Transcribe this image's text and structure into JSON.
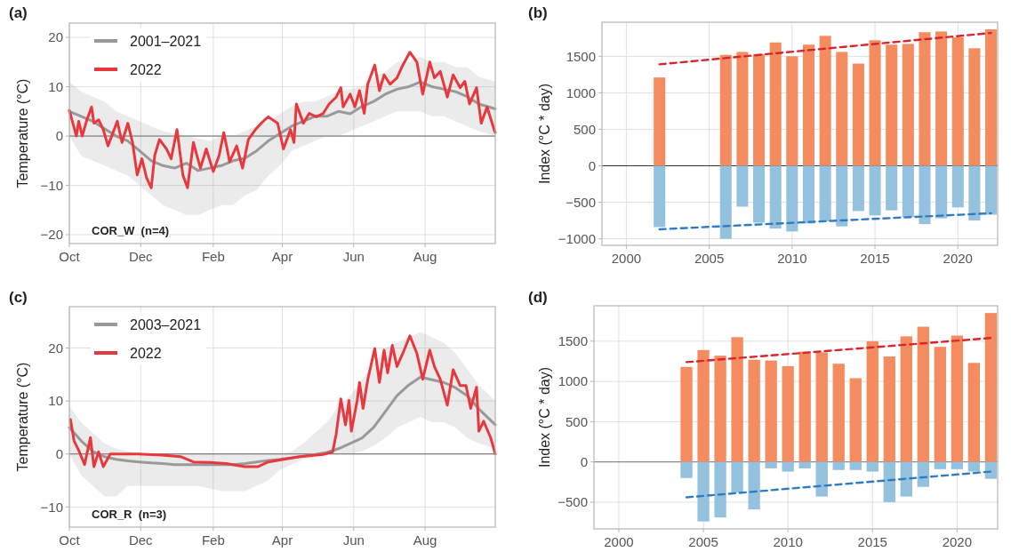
{
  "chart_data": [
    {
      "type": "line",
      "title": "(a)",
      "ylabel": "Temperature (°C)",
      "xlim": [
        "2021-10-01",
        "2022-09-30"
      ],
      "xticks": [
        {
          "value": "2021-10-01",
          "label": "Oct"
        },
        {
          "value": "2021-12-01",
          "label": "Dec"
        },
        {
          "value": "2022-02-01",
          "label": "Feb"
        },
        {
          "value": "2022-04-01",
          "label": "Apr"
        },
        {
          "value": "2022-06-01",
          "label": "Jun"
        },
        {
          "value": "2022-08-01",
          "label": "Aug"
        }
      ],
      "ylim": [
        -21.8,
        22.9
      ],
      "yticks": [
        -20,
        -10,
        0,
        10,
        20
      ],
      "grid": true,
      "legend": "top left",
      "annotations": [
        "COR_W  (n=4)"
      ],
      "ref_lines": [
        {
          "axis": "y",
          "value": 0,
          "color": "#666666"
        }
      ],
      "series": [
        {
          "name": "2001–2021",
          "color": "#999999",
          "x": [
            "2021-10-01",
            "2021-10-11",
            "2021-10-21",
            "2021-10-31",
            "2021-11-10",
            "2021-11-20",
            "2021-11-30",
            "2021-12-10",
            "2021-12-20",
            "2021-12-30",
            "2022-01-09",
            "2022-01-19",
            "2022-01-29",
            "2022-02-08",
            "2022-02-18",
            "2022-02-28",
            "2022-03-10",
            "2022-03-20",
            "2022-03-30",
            "2022-04-09",
            "2022-04-19",
            "2022-04-29",
            "2022-05-09",
            "2022-05-19",
            "2022-05-29",
            "2022-06-08",
            "2022-06-18",
            "2022-06-28",
            "2022-07-08",
            "2022-07-18",
            "2022-07-28",
            "2022-08-07",
            "2022-08-17",
            "2022-08-27",
            "2022-09-06",
            "2022-09-16",
            "2022-09-30"
          ],
          "values": [
            5,
            4,
            3,
            1.5,
            0,
            -1,
            -3,
            -5,
            -6,
            -6.5,
            -5.5,
            -7,
            -6.5,
            -6,
            -5,
            -4.5,
            -3,
            -1,
            0.5,
            2,
            3,
            4,
            4,
            5,
            4.5,
            6,
            7,
            8.5,
            9.5,
            10,
            11,
            10,
            9.5,
            9,
            8,
            6.5,
            5.5
          ],
          "upper": [
            11,
            9,
            8,
            7,
            5,
            4,
            3,
            2,
            1,
            0.5,
            0,
            -0.5,
            -1,
            0,
            0,
            1,
            2,
            3,
            4.5,
            6,
            7,
            7,
            8,
            9,
            9.5,
            10,
            12,
            13,
            15,
            15,
            16,
            15,
            15,
            14,
            14,
            12,
            11
          ],
          "lower": [
            0,
            -4,
            -5,
            -6,
            -7,
            -8,
            -10,
            -12,
            -14,
            -15,
            -16,
            -16,
            -15,
            -14,
            -14,
            -12,
            -11,
            -8,
            -6,
            -3,
            -2,
            -1,
            0,
            0,
            1,
            2,
            3,
            4,
            5,
            5,
            5,
            4,
            4,
            3,
            2,
            1,
            0
          ]
        },
        {
          "name": "2022",
          "color": "#e8383d",
          "x": [
            "2021-10-01",
            "2021-10-07",
            "2021-10-09",
            "2021-10-12",
            "2021-10-16",
            "2021-10-20",
            "2021-10-22",
            "2021-10-26",
            "2021-10-30",
            "2021-11-03",
            "2021-11-11",
            "2021-11-15",
            "2021-11-20",
            "2021-11-24",
            "2021-11-28",
            "2021-12-02",
            "2021-12-06",
            "2021-12-10",
            "2021-12-13",
            "2021-12-17",
            "2021-12-23",
            "2021-12-27",
            "2022-01-01",
            "2022-01-06",
            "2022-01-10",
            "2022-01-15",
            "2022-01-21",
            "2022-01-26",
            "2022-02-01",
            "2022-02-06",
            "2022-02-10",
            "2022-02-15",
            "2022-02-21",
            "2022-02-26",
            "2022-03-03",
            "2022-03-09",
            "2022-03-14",
            "2022-03-20",
            "2022-03-28",
            "2022-04-02",
            "2022-04-08",
            "2022-04-11",
            "2022-04-13",
            "2022-04-19",
            "2022-04-24",
            "2022-04-30",
            "2022-05-06",
            "2022-05-11",
            "2022-05-17",
            "2022-05-21",
            "2022-05-23",
            "2022-05-29",
            "2022-06-02",
            "2022-06-06",
            "2022-06-10",
            "2022-06-13",
            "2022-06-19",
            "2022-06-23",
            "2022-06-27",
            "2022-07-02",
            "2022-07-08",
            "2022-07-13",
            "2022-07-19",
            "2022-07-25",
            "2022-07-30",
            "2022-08-05",
            "2022-08-09",
            "2022-08-14",
            "2022-08-20",
            "2022-08-25",
            "2022-08-31",
            "2022-09-04",
            "2022-09-08",
            "2022-09-14",
            "2022-09-18",
            "2022-09-23",
            "2022-09-29",
            "2022-09-30"
          ],
          "values": [
            5.2,
            0,
            3,
            0,
            3.3,
            5.9,
            2.6,
            3.3,
            1.3,
            -2,
            3,
            -1.3,
            2.6,
            -1.3,
            -7.9,
            -4.6,
            -8.5,
            -10.5,
            -3.9,
            -0.7,
            -2.6,
            -4.6,
            1.3,
            -7.9,
            -10.5,
            -1.3,
            -6.5,
            -2.6,
            -7.2,
            -3.9,
            0.7,
            -5.2,
            -2,
            -6.5,
            -0.7,
            1.3,
            2.6,
            3.9,
            2.6,
            -2.6,
            1.3,
            -1.3,
            6.5,
            2.6,
            4.6,
            3.9,
            4.6,
            6.5,
            7.9,
            9.8,
            5.9,
            8.5,
            5.9,
            9.2,
            4.6,
            10.5,
            14.4,
            9.2,
            12.4,
            10.5,
            11.8,
            14.4,
            17,
            15,
            8.5,
            15,
            11.8,
            13.1,
            7.9,
            12.4,
            9.8,
            11.1,
            6.5,
            9.8,
            2.6,
            5.9,
            1.3,
            0.7
          ]
        }
      ]
    },
    {
      "type": "bar",
      "stacked": true,
      "title": "(b)",
      "ylabel": "Index (°C * day)",
      "xlim": [
        1998.53,
        2022.4
      ],
      "xticks": [
        2000,
        2005,
        2010,
        2015,
        2020
      ],
      "ylim": [
        -1090,
        1967
      ],
      "yticks": [
        -1000,
        -500,
        0,
        500,
        1000,
        1500
      ],
      "grid": true,
      "ref_lines": [
        {
          "axis": "y",
          "value": 0,
          "color": "#333333"
        }
      ],
      "x": [
        2002,
        2006,
        2007,
        2008,
        2009,
        2010,
        2011,
        2012,
        2013,
        2014,
        2015,
        2016,
        2017,
        2018,
        2019,
        2020,
        2021,
        2022
      ],
      "series": [
        {
          "color": "#f48c60",
          "values": [
            1210,
            1520,
            1560,
            1530,
            1690,
            1500,
            1660,
            1780,
            1560,
            1400,
            1720,
            1660,
            1670,
            1830,
            1840,
            1760,
            1610,
            1870
          ]
        },
        {
          "color": "#94c1de",
          "values": [
            -840,
            -1000,
            -560,
            -780,
            -860,
            -900,
            -790,
            -760,
            -830,
            -620,
            -680,
            -610,
            -700,
            -800,
            -720,
            -570,
            -750,
            -670
          ]
        },
        {
          "type": "line",
          "line_style": "dashed",
          "color": "#d7262e",
          "x": [
            2002,
            2022
          ],
          "values": [
            1390,
            1820
          ]
        },
        {
          "type": "line",
          "line_style": "dashed",
          "color": "#2f7dc0",
          "x": [
            2002,
            2022
          ],
          "values": [
            -870,
            -650
          ]
        }
      ]
    },
    {
      "type": "line",
      "title": "(c)",
      "ylabel": "Temperature (°C)",
      "xlim": [
        "2021-10-01",
        "2022-09-30"
      ],
      "xticks": [
        {
          "value": "2021-10-01",
          "label": "Oct"
        },
        {
          "value": "2021-12-01",
          "label": "Dec"
        },
        {
          "value": "2022-02-01",
          "label": "Feb"
        },
        {
          "value": "2022-04-01",
          "label": "Apr"
        },
        {
          "value": "2022-06-01",
          "label": "Jun"
        },
        {
          "value": "2022-08-01",
          "label": "Aug"
        }
      ],
      "ylim": [
        -13.8,
        27.8
      ],
      "yticks": [
        -10,
        0,
        10,
        20
      ],
      "grid": true,
      "legend": "top left",
      "annotations": [
        "COR_R  (n=3)"
      ],
      "ref_lines": [
        {
          "axis": "y",
          "value": 0,
          "color": "#666666"
        }
      ],
      "series": [
        {
          "name": "2003–2021",
          "color": "#999999",
          "x": [
            "2021-10-01",
            "2021-10-11",
            "2021-10-21",
            "2021-10-31",
            "2021-11-10",
            "2021-11-20",
            "2021-11-30",
            "2021-12-10",
            "2021-12-20",
            "2021-12-30",
            "2022-01-09",
            "2022-01-19",
            "2022-01-29",
            "2022-02-08",
            "2022-02-18",
            "2022-02-28",
            "2022-03-10",
            "2022-03-20",
            "2022-03-30",
            "2022-04-09",
            "2022-04-19",
            "2022-04-29",
            "2022-05-09",
            "2022-05-19",
            "2022-05-29",
            "2022-06-08",
            "2022-06-18",
            "2022-06-28",
            "2022-07-08",
            "2022-07-18",
            "2022-07-28",
            "2022-08-07",
            "2022-08-17",
            "2022-08-27",
            "2022-09-06",
            "2022-09-16",
            "2022-09-30"
          ],
          "values": [
            5,
            2.5,
            0.5,
            -0.5,
            -1,
            -1.3,
            -1.5,
            -1.7,
            -1.8,
            -2,
            -2,
            -2,
            -2,
            -2,
            -2,
            -1.8,
            -1.5,
            -1.2,
            -1,
            -0.7,
            -0.4,
            -0.1,
            0.3,
            1,
            2,
            3,
            5,
            8,
            11,
            13,
            14.5,
            14,
            13.5,
            12.5,
            11,
            8.5,
            5.5
          ],
          "upper": [
            9,
            6,
            4,
            2,
            1,
            0.5,
            0,
            0,
            0,
            0,
            0,
            0,
            0,
            0,
            0,
            0,
            0,
            0,
            0,
            0.5,
            2,
            4,
            6,
            9,
            11,
            14,
            17,
            20,
            21,
            22,
            23,
            22,
            21,
            19,
            16,
            13,
            10
          ],
          "lower": [
            0,
            -4,
            -6,
            -8,
            -8,
            -6,
            -6,
            -6,
            -6,
            -6,
            -6,
            -6,
            -6.5,
            -7,
            -7,
            -7,
            -6,
            -5,
            -3,
            -2,
            -1,
            -0.5,
            0,
            0,
            0,
            0.5,
            1.5,
            3,
            5,
            6,
            7,
            6,
            6,
            5,
            3,
            2,
            1
          ]
        },
        {
          "name": "2022",
          "color": "#e8383d",
          "x": [
            "2021-10-02",
            "2021-10-05",
            "2021-10-09",
            "2021-10-14",
            "2021-10-19",
            "2021-10-22",
            "2021-10-26",
            "2021-10-30",
            "2021-11-05",
            "2021-11-15",
            "2021-11-29",
            "2021-12-19",
            "2022-01-04",
            "2022-01-15",
            "2022-01-29",
            "2022-02-12",
            "2022-02-28",
            "2022-03-11",
            "2022-03-20",
            "2022-04-02",
            "2022-04-16",
            "2022-05-06",
            "2022-05-14",
            "2022-05-17",
            "2022-05-21",
            "2022-05-25",
            "2022-05-28",
            "2022-05-30",
            "2022-06-04",
            "2022-06-06",
            "2022-06-09",
            "2022-06-13",
            "2022-06-19",
            "2022-06-23",
            "2022-06-27",
            "2022-06-30",
            "2022-07-04",
            "2022-07-08",
            "2022-07-13",
            "2022-07-19",
            "2022-07-25",
            "2022-07-30",
            "2022-08-05",
            "2022-08-09",
            "2022-08-14",
            "2022-08-20",
            "2022-08-25",
            "2022-08-31",
            "2022-09-05",
            "2022-09-09",
            "2022-09-14",
            "2022-09-16",
            "2022-09-20",
            "2022-09-26",
            "2022-09-30"
          ],
          "values": [
            6.5,
            2.5,
            0.7,
            -2,
            3.1,
            -2.4,
            0.4,
            -2.4,
            0,
            0,
            0,
            -0.2,
            -0.5,
            -1.5,
            -1.6,
            -1.8,
            -2.4,
            -2.4,
            -1.5,
            -1,
            -0.5,
            -0.1,
            0.4,
            3.7,
            10.4,
            5.5,
            10.1,
            4.3,
            10.1,
            13.5,
            8.6,
            14,
            19.9,
            13.5,
            19.6,
            15.3,
            20.5,
            16.5,
            19,
            22.3,
            19,
            14.1,
            19.6,
            16.5,
            14.1,
            9.2,
            15.9,
            12.9,
            12.9,
            8.6,
            12.6,
            4.3,
            6.2,
            3.1,
            0
          ]
        }
      ]
    },
    {
      "type": "bar",
      "stacked": true,
      "title": "(d)",
      "ylabel": "Index (°C * day)",
      "xlim": [
        1998.53,
        2022.4
      ],
      "xticks": [
        2000,
        2005,
        2010,
        2015,
        2020
      ],
      "ylim": [
        -832,
        1940
      ],
      "yticks": [
        -500,
        0,
        500,
        1000,
        1500
      ],
      "grid": true,
      "ref_lines": [
        {
          "axis": "y",
          "value": 0,
          "color": "#777777"
        }
      ],
      "x": [
        2004,
        2005,
        2006,
        2007,
        2008,
        2009,
        2010,
        2011,
        2012,
        2013,
        2014,
        2015,
        2016,
        2017,
        2018,
        2019,
        2020,
        2021,
        2022
      ],
      "series": [
        {
          "color": "#f48c60",
          "values": [
            1180,
            1390,
            1320,
            1550,
            1270,
            1260,
            1190,
            1370,
            1360,
            1220,
            1040,
            1500,
            1310,
            1560,
            1680,
            1430,
            1570,
            1230,
            1850
          ]
        },
        {
          "color": "#94c1de",
          "values": [
            -200,
            -740,
            -690,
            -380,
            -590,
            -80,
            -120,
            -80,
            -430,
            -100,
            -100,
            -120,
            -500,
            -430,
            -310,
            -90,
            -90,
            -120,
            -210
          ]
        },
        {
          "type": "line",
          "line_style": "dashed",
          "color": "#d7262e",
          "x": [
            2004,
            2022
          ],
          "values": [
            1240,
            1540
          ]
        },
        {
          "type": "line",
          "line_style": "dashed",
          "color": "#2f7dc0",
          "x": [
            2004,
            2022
          ],
          "values": [
            -440,
            -120
          ]
        }
      ]
    }
  ]
}
